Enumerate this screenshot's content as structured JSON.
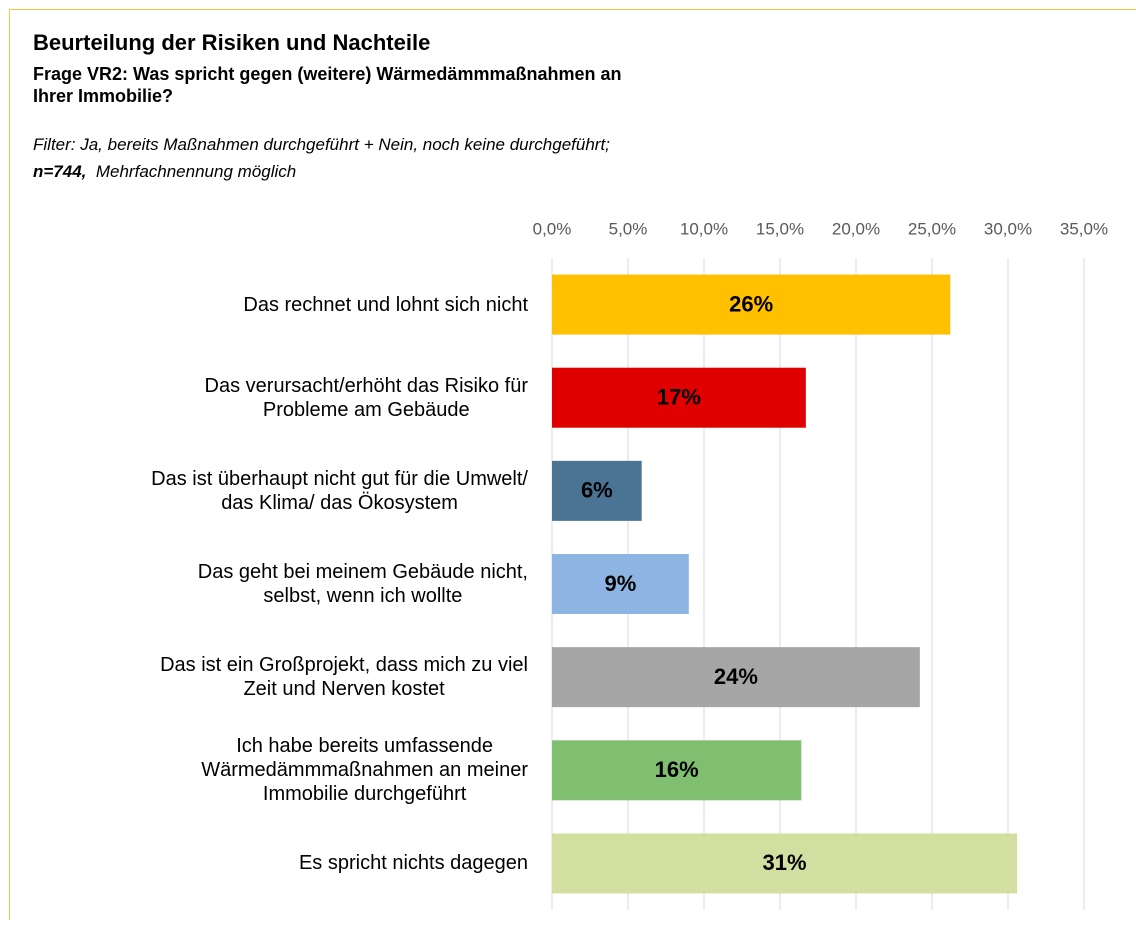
{
  "chart_data": {
    "type": "bar",
    "orientation": "horizontal",
    "title": "Beurteilung der Risiken und Nachteile",
    "subtitle": "Frage VR2: Was spricht gegen (weitere) Wärmedämmmaßnahmen an\nIhrer Immobilie?",
    "filter": "Filter: Ja, bereits Maßnahmen durchgeführt + Nein, noch keine durchgeführt;",
    "n": "n=744,",
    "note": "Mehrfachnennung möglich",
    "categories": [
      "Das rechnet und lohnt sich nicht",
      "Das verursacht/erhöht das Risiko für\nProbleme am Gebäude",
      "Das ist überhaupt nicht gut für die Umwelt/\ndas Klima/ das Ökosystem",
      "Das geht bei meinem Gebäude nicht,\nselbst, wenn ich wollte",
      "Das ist ein Großprojekt, dass mich zu viel\nZeit und Nerven kostet",
      "Ich habe bereits umfassende\nWärmedämmmaßnahmen an meiner\nImmobilie durchgeführt",
      "Es spricht nichts dagegen"
    ],
    "values": [
      26.2,
      16.7,
      5.9,
      9.0,
      24.2,
      16.4,
      30.6
    ],
    "value_labels": [
      "26%",
      "17%",
      "6%",
      "9%",
      "24%",
      "16%",
      "31%"
    ],
    "colors": [
      "#ffc000",
      "#e00000",
      "#4a7394",
      "#8db4e2",
      "#a6a6a6",
      "#7fbf6f",
      "#d2dfa0"
    ],
    "xlim": [
      0,
      35
    ],
    "xticks": [
      {
        "value": 0,
        "label": "0,0%"
      },
      {
        "value": 5,
        "label": "5,0%"
      },
      {
        "value": 10,
        "label": "10,0%"
      },
      {
        "value": 15,
        "label": "15,0%"
      },
      {
        "value": 20,
        "label": "20,0%"
      },
      {
        "value": 25,
        "label": "25,0%"
      },
      {
        "value": 30,
        "label": "30,0%"
      },
      {
        "value": 35,
        "label": "35,0%"
      }
    ],
    "grid": true
  }
}
